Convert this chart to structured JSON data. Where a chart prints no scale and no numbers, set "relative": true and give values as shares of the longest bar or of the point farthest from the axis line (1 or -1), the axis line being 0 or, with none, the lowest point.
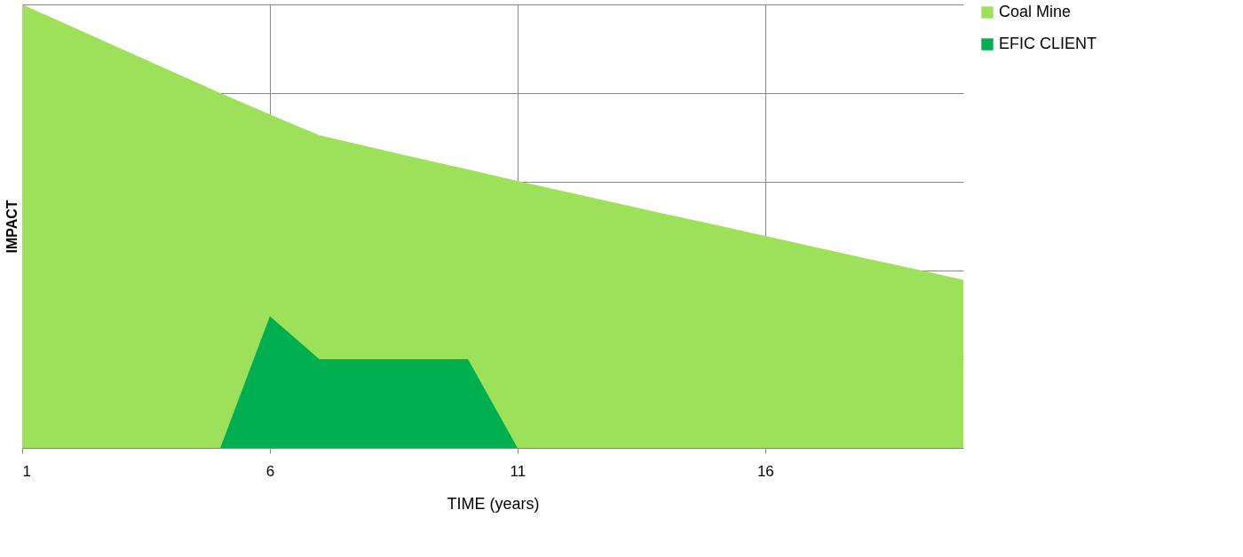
{
  "chart_data": {
    "type": "area",
    "relative": true,
    "xlabel": "TIME (years)",
    "ylabel": "IMPACT",
    "x": [
      1,
      2,
      3,
      4,
      5,
      6,
      7,
      8,
      9,
      10,
      11,
      12,
      13,
      14,
      15,
      16,
      17,
      18,
      19,
      20
    ],
    "xlim": [
      1,
      20
    ],
    "xticks": [
      1,
      6,
      11,
      16
    ],
    "series": [
      {
        "name": "Coal Mine",
        "color": "#9de05a",
        "values": [
          1.0,
          0.95,
          0.9,
          0.85,
          0.8,
          0.752,
          0.705,
          0.679,
          0.653,
          0.628,
          0.602,
          0.577,
          0.552,
          0.527,
          0.503,
          0.478,
          0.453,
          0.428,
          0.404,
          0.379
        ]
      },
      {
        "name": "EFIC CLIENT",
        "color": "#00b050",
        "values": [
          null,
          null,
          null,
          null,
          0,
          0.297,
          0.2,
          0.2,
          0.2,
          0.2,
          0,
          null,
          null,
          null,
          null,
          null,
          null,
          null,
          null,
          null
        ]
      }
    ],
    "grid": true,
    "legend": "right"
  }
}
